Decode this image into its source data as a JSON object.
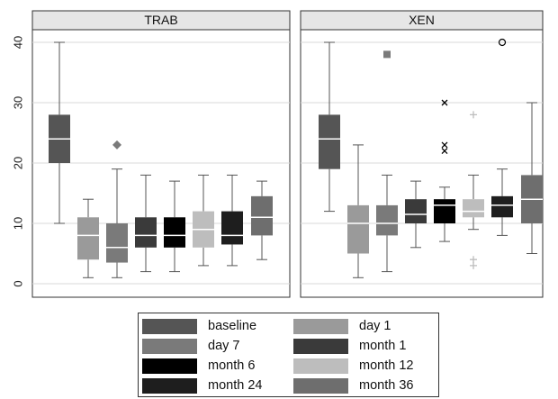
{
  "chart_data": {
    "type": "box",
    "panels": [
      "TRAB",
      "XEN"
    ],
    "y_ticks": [
      "0",
      "10",
      "20",
      "30",
      "40"
    ],
    "ylim": [
      -2,
      43
    ],
    "legend": {
      "position": "bottom",
      "entries": [
        "baseline",
        "day 1",
        "day 7",
        "month 1",
        "month 6",
        "month 12",
        "month 24",
        "month 36"
      ]
    },
    "series": [
      {
        "name": "baseline",
        "color": "#555555",
        "TRAB": {
          "whisker_low": 10,
          "q1": 20,
          "median": 24,
          "q3": 28,
          "whisker_high": 40,
          "outliers": []
        },
        "XEN": {
          "whisker_low": 12,
          "q1": 19,
          "median": 24,
          "q3": 28,
          "whisker_high": 40,
          "outliers": []
        }
      },
      {
        "name": "day 1",
        "color": "#9a9a9a",
        "TRAB": {
          "whisker_low": 1,
          "q1": 4,
          "median": 8,
          "q3": 11,
          "whisker_high": 14,
          "outliers": []
        },
        "XEN": {
          "whisker_low": 1,
          "q1": 5,
          "median": 10,
          "q3": 13,
          "whisker_high": 23,
          "outliers": []
        }
      },
      {
        "name": "day 7",
        "color": "#7a7a7a",
        "TRAB": {
          "whisker_low": 1,
          "q1": 3.5,
          "median": 6,
          "q3": 10,
          "whisker_high": 19,
          "outliers": [
            23
          ]
        },
        "XEN": {
          "whisker_low": 2,
          "q1": 8,
          "median": 10,
          "q3": 13,
          "whisker_high": 18,
          "outliers": [
            38
          ]
        }
      },
      {
        "name": "month 1",
        "color": "#3a3a3a",
        "TRAB": {
          "whisker_low": 2,
          "q1": 6,
          "median": 8,
          "q3": 11,
          "whisker_high": 18,
          "outliers": []
        },
        "XEN": {
          "whisker_low": 6,
          "q1": 10,
          "median": 11.5,
          "q3": 14,
          "whisker_high": 17,
          "outliers": []
        }
      },
      {
        "name": "month 6",
        "color": "#000000",
        "TRAB": {
          "whisker_low": 2,
          "q1": 6,
          "median": 8,
          "q3": 11,
          "whisker_high": 17,
          "outliers": []
        },
        "XEN": {
          "whisker_low": 7,
          "q1": 10,
          "median": 13,
          "q3": 14,
          "whisker_high": 16,
          "outliers": [
            22,
            23,
            30
          ]
        }
      },
      {
        "name": "month 12",
        "color": "#bdbdbd",
        "TRAB": {
          "whisker_low": 3,
          "q1": 6,
          "median": 9,
          "q3": 12,
          "whisker_high": 18,
          "outliers": []
        },
        "XEN": {
          "whisker_low": 9,
          "q1": 11,
          "median": 12,
          "q3": 14,
          "whisker_high": 18,
          "outliers": [
            3,
            4,
            28
          ]
        }
      },
      {
        "name": "month 24",
        "color": "#1e1e1e",
        "TRAB": {
          "whisker_low": 3,
          "q1": 6.5,
          "median": 8,
          "q3": 12,
          "whisker_high": 18,
          "outliers": []
        },
        "XEN": {
          "whisker_low": 8,
          "q1": 11,
          "median": 13,
          "q3": 14.5,
          "whisker_high": 19,
          "outliers": [
            40
          ]
        }
      },
      {
        "name": "month 36",
        "color": "#6e6e6e",
        "TRAB": {
          "whisker_low": 4,
          "q1": 8,
          "median": 11,
          "q3": 14.5,
          "whisker_high": 17,
          "outliers": []
        },
        "XEN": {
          "whisker_low": 5,
          "q1": 10,
          "median": 14,
          "q3": 18,
          "whisker_high": 30,
          "outliers": []
        }
      }
    ],
    "outlier_markers": {
      "TRAB": {
        "day 7": "diamond"
      },
      "XEN": {
        "day 7": "square",
        "month 6": "x",
        "month 12": "plus",
        "month 24": "circle"
      }
    }
  }
}
